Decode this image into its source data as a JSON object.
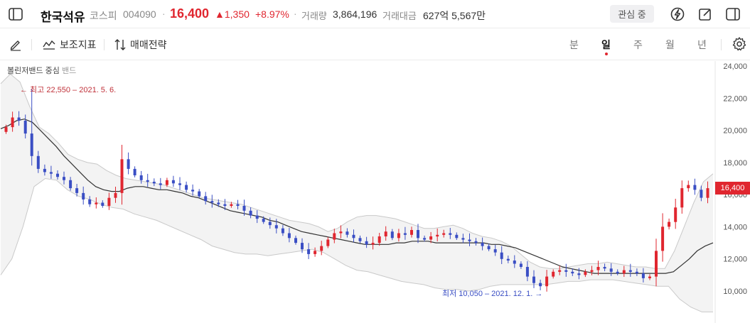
{
  "header": {
    "name": "한국석유",
    "market": "코스피",
    "code": "004090",
    "sep": "·",
    "price": "16,400",
    "change": "▲1,350",
    "change_pct": "+8.97%",
    "volume_label": "거래량",
    "volume": "3,864,196",
    "amount_label": "거래대금",
    "amount": "627억 5,567만",
    "watch_label": "관심 중"
  },
  "toolbar": {
    "indicators_label": "보조지표",
    "strategy_label": "매매전략",
    "periods": [
      "분",
      "일",
      "주",
      "월",
      "년"
    ],
    "active_period": "일"
  },
  "legend": {
    "title": "볼린저밴드 중심",
    "sub": "밴드"
  },
  "annotations": {
    "high": "← 최고 22,550 – 2021. 5. 6.",
    "low": "최저 10,050 – 2021. 12. 1. →"
  },
  "price_tag": "16,400",
  "colors": {
    "up": "#e0262f",
    "down": "#3a4ec4",
    "mid": "#333333",
    "band": "#c9c9c9",
    "band_fill": "#f3f3f3"
  },
  "chart_data": {
    "type": "candlestick",
    "y_ticks": [
      "24,000",
      "22,000",
      "20,000",
      "18,000",
      "16,000",
      "14,000",
      "12,000",
      "10,000"
    ],
    "ylim": [
      8600,
      24600
    ],
    "high": 22550,
    "low": 10050,
    "last": 16400,
    "close_series": [
      20200,
      20800,
      20600,
      19800,
      18400,
      17600,
      17400,
      17300,
      17100,
      16900,
      16400,
      16100,
      15700,
      15400,
      15500,
      15300,
      15800,
      16100,
      18200,
      17600,
      17200,
      16900,
      16800,
      16700,
      16600,
      16900,
      16700,
      16600,
      16300,
      16200,
      15900,
      15600,
      15500,
      15400,
      15300,
      15400,
      15300,
      15000,
      14700,
      14500,
      14300,
      14100,
      13900,
      13600,
      13300,
      13000,
      12600,
      12300,
      12500,
      12800,
      13200,
      13600,
      13700,
      13500,
      13300,
      13100,
      12900,
      13000,
      13400,
      13700,
      13300,
      13600,
      13500,
      13800,
      13300,
      13200,
      13400,
      13500,
      13600,
      13500,
      13300,
      13200,
      13100,
      13000,
      12800,
      12600,
      12400,
      12000,
      11900,
      11700,
      11500,
      10900,
      10500,
      10300,
      10900,
      11200,
      11300,
      11200,
      11100,
      11000,
      11200,
      11300,
      11500,
      11400,
      11200,
      11100,
      11300,
      11200,
      11100,
      10800,
      10900,
      12500,
      14000,
      14300,
      15200,
      16400,
      16600,
      16300,
      15800,
      16400
    ],
    "mid_series": [
      20100,
      20300,
      20600,
      20700,
      20500,
      20000,
      19500,
      19000,
      18400,
      17900,
      17400,
      16900,
      16500,
      16300,
      16200,
      16200,
      16400,
      16500,
      16500,
      16400,
      16300,
      16300,
      16200,
      16100,
      15900,
      15800,
      15600,
      15400,
      15200,
      15000,
      14900,
      14800,
      14700,
      14600,
      14400,
      14300,
      14100,
      13900,
      13700,
      13600,
      13500,
      13400,
      13300,
      13200,
      13100,
      13000,
      12900,
      12900,
      12900,
      12900,
      13000,
      13000,
      13100,
      13100,
      13100,
      13000,
      13000,
      13000,
      13000,
      13000,
      13000,
      13000,
      12900,
      12900,
      12800,
      12700,
      12500,
      12300,
      12100,
      11900,
      11700,
      11500,
      11400,
      11300,
      11200,
      11100,
      11100,
      11100,
      11100,
      11100,
      11100,
      11100,
      11100,
      11100,
      11100,
      11200,
      11600,
      12000,
      12500,
      12800,
      13000
    ],
    "upper_series": [
      22900,
      23500,
      23000,
      21500,
      20200,
      19800,
      19200,
      18500,
      18200,
      18000,
      17900,
      17500,
      17200,
      17000,
      16900,
      16800,
      16700,
      16600,
      16400,
      16200,
      16000,
      15800,
      15700,
      15600,
      15500,
      15400,
      15200,
      15000,
      14800,
      14600,
      14400,
      14300,
      14200,
      14000,
      13700,
      13900,
      14300,
      14600,
      14700,
      14700,
      14600,
      14500,
      14300,
      14100,
      13900,
      13900,
      14000,
      14100,
      13900,
      13600,
      13400,
      13300,
      13100,
      12800,
      12300,
      11800,
      11500,
      11400,
      11400,
      11500,
      11600,
      11700,
      11700,
      11800,
      11700,
      11600,
      11500,
      11500,
      11400,
      11400,
      12500,
      14000,
      15500,
      16800,
      17300
    ],
    "lower_series": [
      11000,
      12000,
      14000,
      16500,
      17000,
      16900,
      16300,
      15900,
      15700,
      15400,
      15200,
      15100,
      14800,
      14600,
      14400,
      14100,
      13800,
      13500,
      13200,
      12800,
      12600,
      12400,
      12300,
      12300,
      12200,
      12300,
      12400,
      12500,
      12600,
      12400,
      12000,
      11600,
      11300,
      11200,
      11000,
      10800,
      10600,
      10500,
      10400,
      10200,
      10100,
      10100,
      10000,
      10100,
      10300,
      10400,
      10400,
      10400,
      10400,
      10400,
      10500,
      10600,
      10600,
      10700,
      10700,
      10700,
      10600,
      10500,
      10400,
      10300,
      10300,
      9500,
      9000,
      8700,
      8700
    ]
  }
}
